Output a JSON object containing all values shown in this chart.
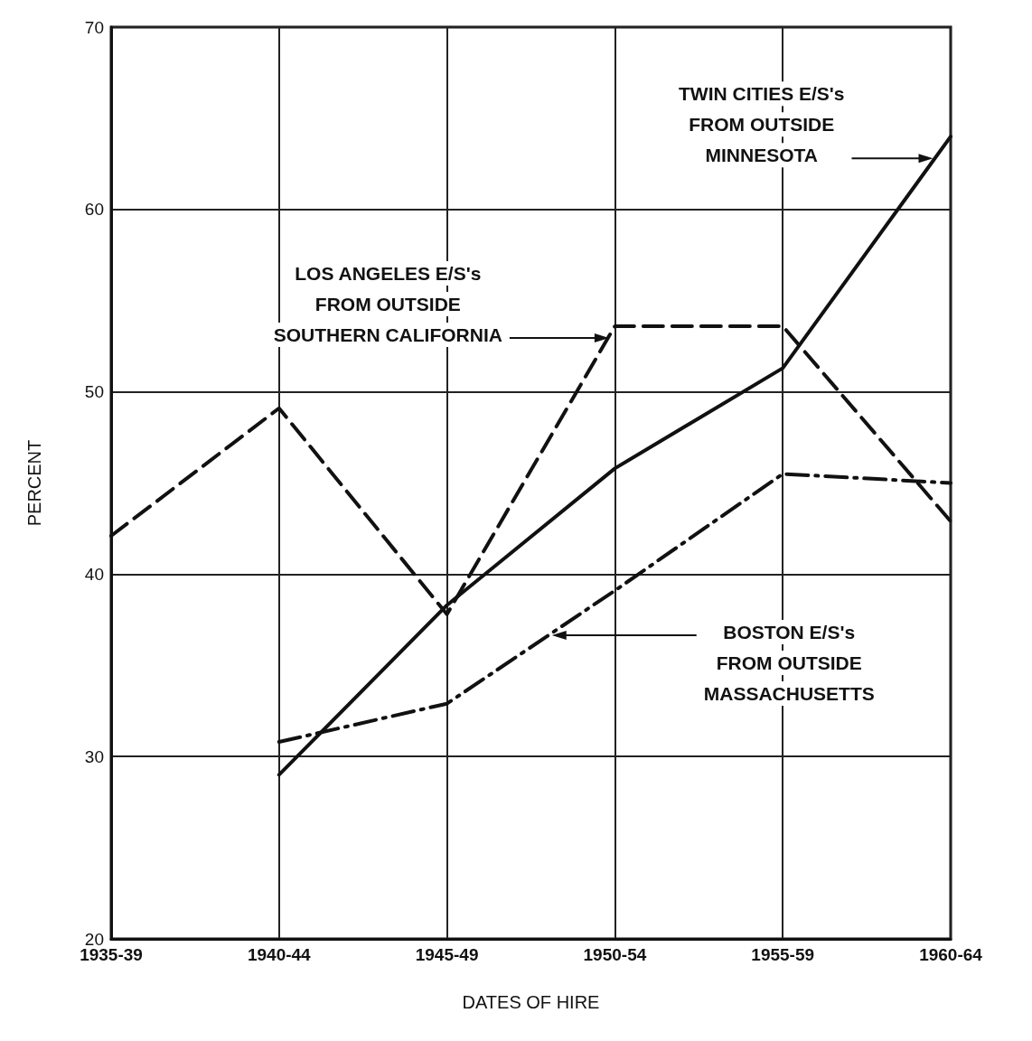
{
  "chart_data": {
    "type": "line",
    "xlabel": "DATES OF HIRE",
    "ylabel": "PERCENT",
    "categories": [
      "1935-39",
      "1940-44",
      "1945-49",
      "1950-54",
      "1955-59",
      "1960-64"
    ],
    "ylim": [
      20,
      70
    ],
    "yticks": [
      20,
      30,
      40,
      50,
      60,
      70
    ],
    "grid": true,
    "marker": "none",
    "series": [
      {
        "color": "#111111",
        "line_style": "solid",
        "values": [
          null,
          29,
          38.3,
          45.8,
          51.3,
          64
        ]
      },
      {
        "color": "#111111",
        "line_style": "dashed",
        "values": [
          42.1,
          49.1,
          37.8,
          53.6,
          53.6,
          42.9
        ]
      },
      {
        "color": "#111111",
        "line_style": "dashdot",
        "values": [
          null,
          30.8,
          32.9,
          39.1,
          45.5,
          45
        ]
      }
    ],
    "annotations": [
      "TWIN CITIES E/S's\nFROM OUTSIDE\nMINNESOTA",
      "LOS ANGELES E/S's\nFROM OUTSIDE\nSOUTHERN CALIFORNIA",
      "BOSTON E/S's\nFROM OUTSIDE\nMASSACHUSETTS"
    ]
  }
}
